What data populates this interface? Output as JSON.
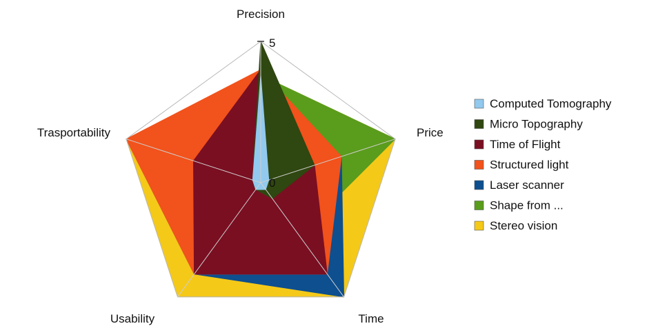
{
  "chart_data": {
    "type": "radar",
    "title": "",
    "axes": [
      "Precision",
      "Price",
      "Time",
      "Usability",
      "Trasportability"
    ],
    "range": [
      0,
      5
    ],
    "tick_labels": [
      "0",
      "5"
    ],
    "grid": true,
    "legend_position": "right",
    "series": [
      {
        "name": "Stereo vision",
        "color": "#f5c918",
        "values": [
          3.8,
          5,
          5,
          5,
          5
        ]
      },
      {
        "name": "Shape from ...",
        "color": "#5a9c1c",
        "values": [
          3.8,
          5,
          2.3,
          2,
          1
        ]
      },
      {
        "name": "Laser scanner",
        "color": "#0d4f8f",
        "values": [
          3.8,
          3,
          5,
          4,
          5
        ]
      },
      {
        "name": "Structured light",
        "color": "#f2521b",
        "values": [
          4,
          3,
          4,
          4,
          5
        ]
      },
      {
        "name": "Time of Flight",
        "color": "#7a0f22",
        "values": [
          4,
          2,
          4,
          4,
          2.5
        ]
      },
      {
        "name": "Micro Topography",
        "color": "#2f4710",
        "values": [
          5,
          2,
          0.7,
          0.3,
          0.3
        ]
      },
      {
        "name": "Computed Tomography",
        "color": "#92c9ee",
        "values": [
          3.8,
          0.3,
          0.3,
          0.3,
          0.3
        ]
      }
    ],
    "legend_order": [
      "Computed Tomography",
      "Micro Topography",
      "Time of Flight",
      "Structured light",
      "Laser scanner",
      "Shape from ...",
      "Stereo vision"
    ]
  }
}
